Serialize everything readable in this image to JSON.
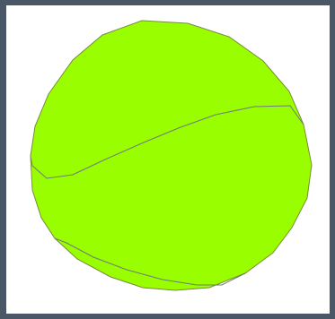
{
  "scene": {
    "ball_fill": "#99ff00",
    "ball_stroke": "#7a8a3a",
    "seam_color": "#6d7a7d",
    "frame_color": "#4a5766",
    "background": "#ffffff"
  }
}
